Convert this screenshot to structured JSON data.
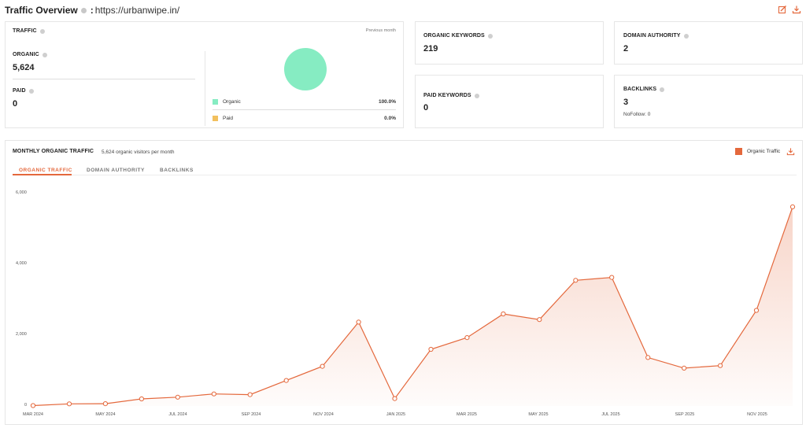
{
  "header": {
    "title": "Traffic Overview",
    "separator": ":",
    "url": "https://urbanwipe.in/"
  },
  "header_icons": [
    "edit-chart-icon",
    "download-icon"
  ],
  "traffic": {
    "label": "TRAFFIC",
    "period": "Previous month",
    "organic_label": "ORGANIC",
    "organic_value": "5,624",
    "paid_label": "PAID",
    "paid_value": "0",
    "legend": [
      {
        "name": "Organic",
        "pct": "100.0%",
        "color": "#86ecc2"
      },
      {
        "name": "Paid",
        "pct": "0.0%",
        "color": "#f2c05e"
      }
    ],
    "pie": {
      "organic": 100.0,
      "paid": 0.0
    }
  },
  "organic_keywords": {
    "label": "ORGANIC KEYWORDS",
    "value": "219"
  },
  "domain_authority": {
    "label": "DOMAIN AUTHORITY",
    "value": "2"
  },
  "paid_keywords": {
    "label": "PAID KEYWORDS",
    "value": "0"
  },
  "backlinks": {
    "label": "BACKLINKS",
    "value": "3",
    "nofollow": "NoFollow: 0"
  },
  "monthly": {
    "title": "MONTHLY ORGANIC TRAFFIC",
    "subtitle": "5,624 organic visitors per month",
    "legend_label": "Organic Traffic",
    "tabs": [
      "ORGANIC TRAFFIC",
      "DOMAIN AUTHORITY",
      "BACKLINKS"
    ],
    "active_tab": 0
  },
  "colors": {
    "accent": "#e4683c",
    "organic": "#86ecc2",
    "paid": "#f2c05e"
  },
  "chart_data": {
    "type": "area",
    "series": [
      {
        "name": "Organic Traffic",
        "values": [
          10,
          60,
          65,
          200,
          250,
          340,
          320,
          720,
          1120,
          2370,
          210,
          1600,
          1930,
          2600,
          2440,
          3550,
          3630,
          1370,
          1070,
          1140,
          2700,
          5624
        ]
      }
    ],
    "ylim": [
      0,
      6000
    ],
    "yticks": [
      "0",
      "2,000",
      "4,000",
      "6,000"
    ],
    "xticks": [
      "MAR 2024",
      "MAY 2024",
      "JUL 2024",
      "SEP 2024",
      "NOV 2024",
      "JAN 2025",
      "MAR 2025",
      "MAY 2025",
      "JUL 2025",
      "SEP 2025",
      "NOV 2025"
    ],
    "grid": false
  }
}
